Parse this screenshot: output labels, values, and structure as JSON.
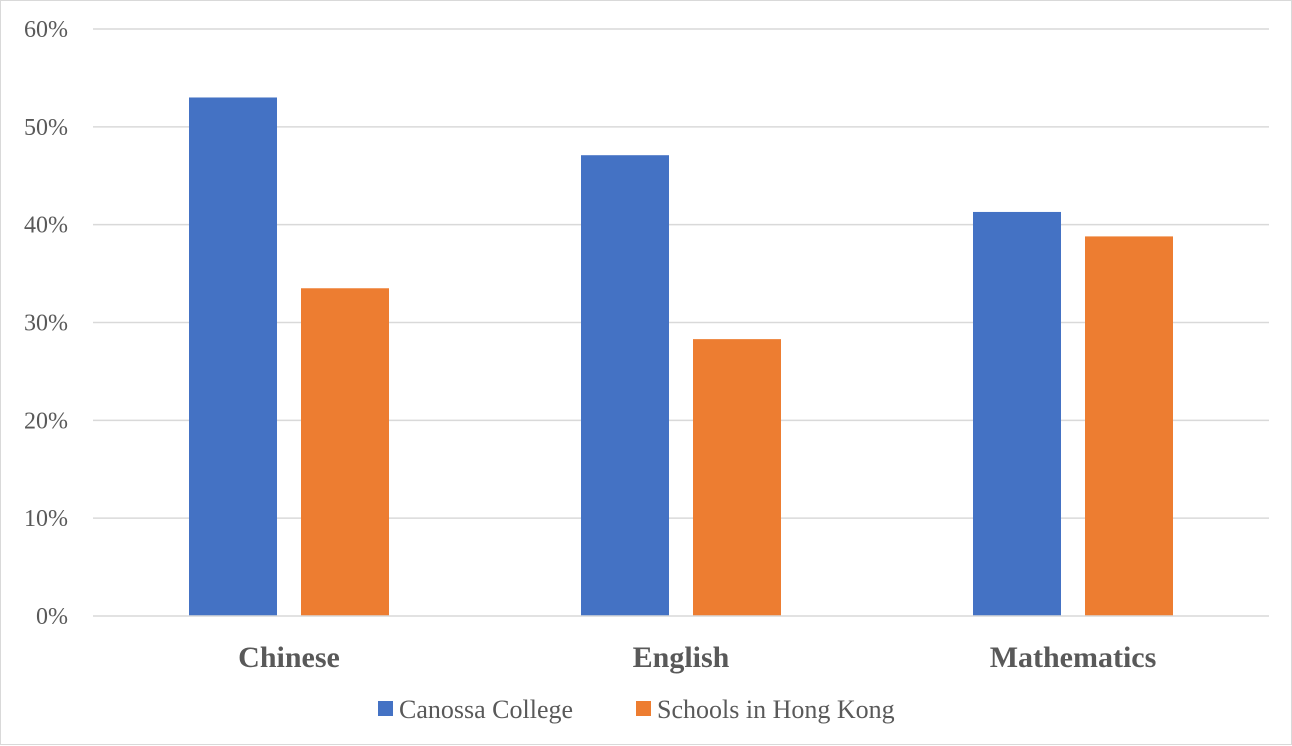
{
  "chart_data": {
    "type": "bar",
    "categories": [
      "Chinese",
      "English",
      "Mathematics"
    ],
    "series": [
      {
        "name": "Canossa College",
        "values": [
          53,
          47.1,
          41.3
        ],
        "color": "#4472c4"
      },
      {
        "name": "Schools in Hong Kong",
        "values": [
          33.5,
          28.3,
          38.8
        ],
        "color": "#ed7d31"
      }
    ],
    "ylim": [
      0,
      60
    ],
    "yticks": [
      0,
      10,
      20,
      30,
      40,
      50,
      60
    ],
    "ytick_labels": [
      "0%",
      "10%",
      "20%",
      "30%",
      "40%",
      "50%",
      "60%"
    ],
    "y_unit": "%",
    "grid": true,
    "gridline_color": "#d9d9d9",
    "legend_position": "bottom",
    "title": "",
    "xlabel": "",
    "ylabel": ""
  }
}
